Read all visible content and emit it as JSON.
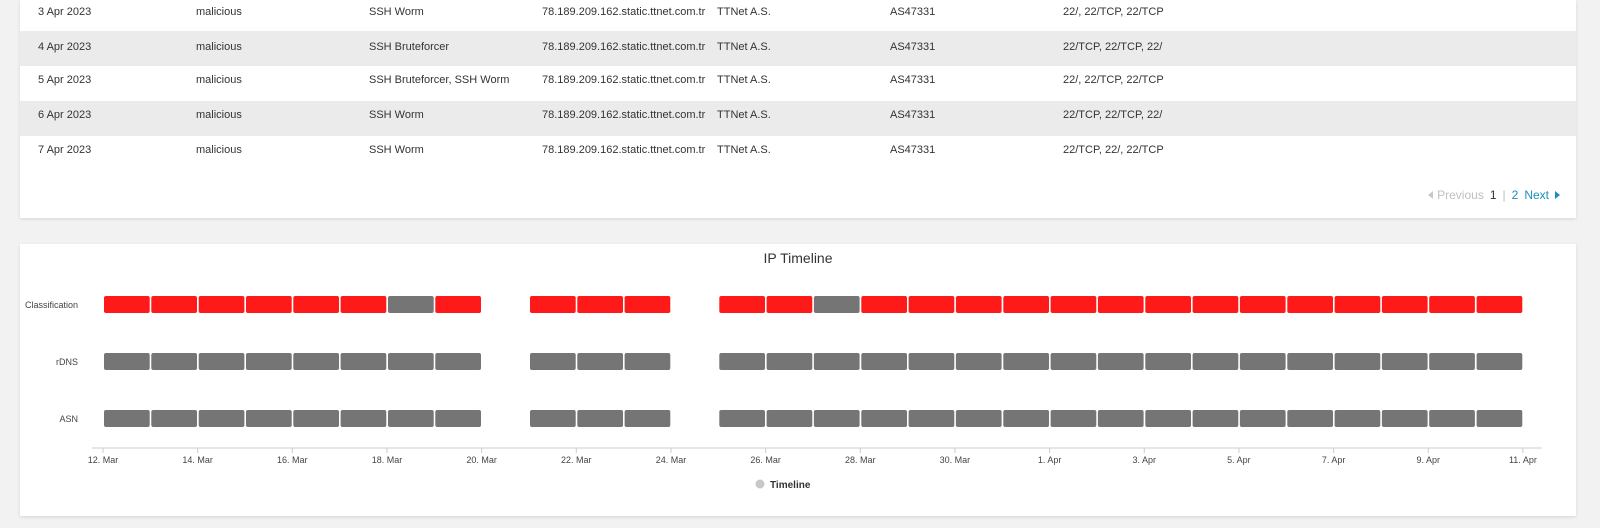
{
  "table": {
    "rows": [
      [
        "3 Apr 2023",
        "malicious",
        "SSH Worm",
        "78.189.209.162.static.ttnet.com.tr",
        "TTNet A.S.",
        "AS47331",
        "22/, 22/TCP, 22/TCP"
      ],
      [
        "4 Apr 2023",
        "malicious",
        "SSH Bruteforcer",
        "78.189.209.162.static.ttnet.com.tr",
        "TTNet A.S.",
        "AS47331",
        "22/TCP, 22/TCP, 22/"
      ],
      [
        "5 Apr 2023",
        "malicious",
        "SSH Bruteforcer, SSH Worm",
        "78.189.209.162.static.ttnet.com.tr",
        "TTNet A.S.",
        "AS47331",
        "22/, 22/TCP, 22/TCP"
      ],
      [
        "6 Apr 2023",
        "malicious",
        "SSH Worm",
        "78.189.209.162.static.ttnet.com.tr",
        "TTNet A.S.",
        "AS47331",
        "22/TCP, 22/TCP, 22/"
      ],
      [
        "7 Apr 2023",
        "malicious",
        "SSH Worm",
        "78.189.209.162.static.ttnet.com.tr",
        "TTNet A.S.",
        "AS47331",
        "22/TCP, 22/, 22/TCP"
      ]
    ]
  },
  "pagination": {
    "previous_label": "Previous",
    "pages": [
      "1",
      "2"
    ],
    "current_page": "1",
    "next_label": "Next"
  },
  "chart_data": {
    "type": "timeline",
    "title": "IP Timeline",
    "categories": [
      "Classification",
      "rDNS",
      "ASN"
    ],
    "x_ticks": [
      "12. Mar",
      "14. Mar",
      "16. Mar",
      "18. Mar",
      "20. Mar",
      "22. Mar",
      "24. Mar",
      "26. Mar",
      "28. Mar",
      "30. Mar",
      "1. Apr",
      "3. Apr",
      "5. Apr",
      "7. Apr",
      "9. Apr",
      "11. Apr"
    ],
    "legend": [
      "Timeline"
    ],
    "colors": {
      "malicious": "#ff1a1a",
      "other": "#757575",
      "legend": "#c8c8c8",
      "axis_text": "#444444"
    },
    "series": [
      {
        "name": "Classification",
        "days": [
          {
            "date": "12 Mar",
            "color": "malicious"
          },
          {
            "date": "13 Mar",
            "color": "malicious"
          },
          {
            "date": "14 Mar",
            "color": "malicious"
          },
          {
            "date": "15 Mar",
            "color": "malicious"
          },
          {
            "date": "16 Mar",
            "color": "malicious"
          },
          {
            "date": "17 Mar",
            "color": "malicious"
          },
          {
            "date": "18 Mar",
            "color": "other"
          },
          {
            "date": "19 Mar",
            "color": "malicious"
          },
          {
            "date": "21 Mar",
            "color": "malicious"
          },
          {
            "date": "22 Mar",
            "color": "malicious"
          },
          {
            "date": "23 Mar",
            "color": "malicious"
          },
          {
            "date": "25 Mar",
            "color": "malicious"
          },
          {
            "date": "26 Mar",
            "color": "malicious"
          },
          {
            "date": "27 Mar",
            "color": "other"
          },
          {
            "date": "28 Mar",
            "color": "malicious"
          },
          {
            "date": "29 Mar",
            "color": "malicious"
          },
          {
            "date": "30 Mar",
            "color": "malicious"
          },
          {
            "date": "31 Mar",
            "color": "malicious"
          },
          {
            "date": "1 Apr",
            "color": "malicious"
          },
          {
            "date": "2 Apr",
            "color": "malicious"
          },
          {
            "date": "3 Apr",
            "color": "malicious"
          },
          {
            "date": "4 Apr",
            "color": "malicious"
          },
          {
            "date": "5 Apr",
            "color": "malicious"
          },
          {
            "date": "6 Apr",
            "color": "malicious"
          },
          {
            "date": "7 Apr",
            "color": "malicious"
          },
          {
            "date": "8 Apr",
            "color": "malicious"
          },
          {
            "date": "9 Apr",
            "color": "malicious"
          },
          {
            "date": "10 Apr",
            "color": "malicious"
          }
        ]
      },
      {
        "name": "rDNS",
        "days": [
          {
            "date": "12 Mar",
            "color": "other"
          },
          {
            "date": "13 Mar",
            "color": "other"
          },
          {
            "date": "14 Mar",
            "color": "other"
          },
          {
            "date": "15 Mar",
            "color": "other"
          },
          {
            "date": "16 Mar",
            "color": "other"
          },
          {
            "date": "17 Mar",
            "color": "other"
          },
          {
            "date": "18 Mar",
            "color": "other"
          },
          {
            "date": "19 Mar",
            "color": "other"
          },
          {
            "date": "21 Mar",
            "color": "other"
          },
          {
            "date": "22 Mar",
            "color": "other"
          },
          {
            "date": "23 Mar",
            "color": "other"
          },
          {
            "date": "25 Mar",
            "color": "other"
          },
          {
            "date": "26 Mar",
            "color": "other"
          },
          {
            "date": "27 Mar",
            "color": "other"
          },
          {
            "date": "28 Mar",
            "color": "other"
          },
          {
            "date": "29 Mar",
            "color": "other"
          },
          {
            "date": "30 Mar",
            "color": "other"
          },
          {
            "date": "31 Mar",
            "color": "other"
          },
          {
            "date": "1 Apr",
            "color": "other"
          },
          {
            "date": "2 Apr",
            "color": "other"
          },
          {
            "date": "3 Apr",
            "color": "other"
          },
          {
            "date": "4 Apr",
            "color": "other"
          },
          {
            "date": "5 Apr",
            "color": "other"
          },
          {
            "date": "6 Apr",
            "color": "other"
          },
          {
            "date": "7 Apr",
            "color": "other"
          },
          {
            "date": "8 Apr",
            "color": "other"
          },
          {
            "date": "9 Apr",
            "color": "other"
          },
          {
            "date": "10 Apr",
            "color": "other"
          }
        ]
      },
      {
        "name": "ASN",
        "days": [
          {
            "date": "12 Mar",
            "color": "other"
          },
          {
            "date": "13 Mar",
            "color": "other"
          },
          {
            "date": "14 Mar",
            "color": "other"
          },
          {
            "date": "15 Mar",
            "color": "other"
          },
          {
            "date": "16 Mar",
            "color": "other"
          },
          {
            "date": "17 Mar",
            "color": "other"
          },
          {
            "date": "18 Mar",
            "color": "other"
          },
          {
            "date": "19 Mar",
            "color": "other"
          },
          {
            "date": "21 Mar",
            "color": "other"
          },
          {
            "date": "22 Mar",
            "color": "other"
          },
          {
            "date": "23 Mar",
            "color": "other"
          },
          {
            "date": "25 Mar",
            "color": "other"
          },
          {
            "date": "26 Mar",
            "color": "other"
          },
          {
            "date": "27 Mar",
            "color": "other"
          },
          {
            "date": "28 Mar",
            "color": "other"
          },
          {
            "date": "29 Mar",
            "color": "other"
          },
          {
            "date": "30 Mar",
            "color": "other"
          },
          {
            "date": "31 Mar",
            "color": "other"
          },
          {
            "date": "1 Apr",
            "color": "other"
          },
          {
            "date": "2 Apr",
            "color": "other"
          },
          {
            "date": "3 Apr",
            "color": "other"
          },
          {
            "date": "4 Apr",
            "color": "other"
          },
          {
            "date": "5 Apr",
            "color": "other"
          },
          {
            "date": "6 Apr",
            "color": "other"
          },
          {
            "date": "7 Apr",
            "color": "other"
          },
          {
            "date": "8 Apr",
            "color": "other"
          },
          {
            "date": "9 Apr",
            "color": "other"
          },
          {
            "date": "10 Apr",
            "color": "other"
          }
        ]
      }
    ]
  }
}
